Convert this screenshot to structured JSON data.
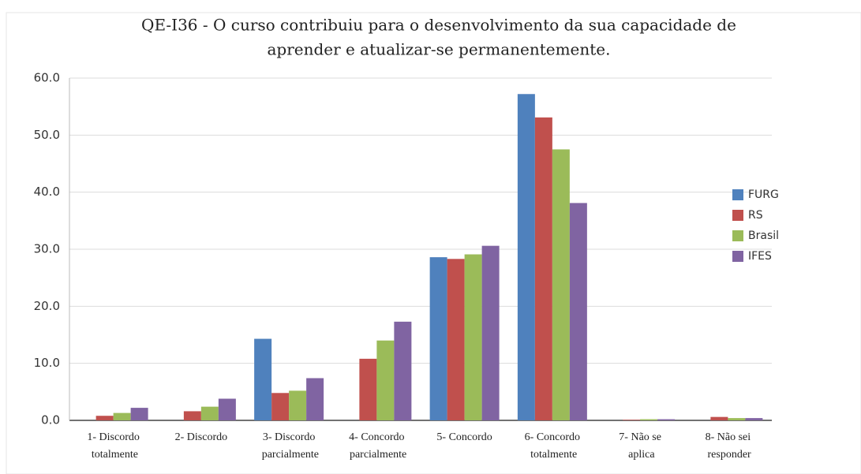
{
  "chart_data": {
    "type": "bar",
    "title": [
      "QE-I36 - O curso contribuiu para o desenvolvimento da sua capacidade de",
      "aprender e atualizar-se permanentemente."
    ],
    "categories": [
      "1- Discordo totalmente",
      "2- Discordo",
      "3- Discordo parcialmente",
      "4- Concordo parcialmente",
      "5- Concordo",
      "6- Concordo totalmente",
      "7- Não se aplica",
      "8- Não sei responder"
    ],
    "series": [
      {
        "name": "FURG",
        "color": "#4f81bd",
        "values": [
          0,
          0,
          14.3,
          0,
          28.6,
          57.2,
          0,
          0
        ]
      },
      {
        "name": "RS",
        "color": "#c0504d",
        "values": [
          0.8,
          1.6,
          4.8,
          10.8,
          28.3,
          53.1,
          0.1,
          0.6
        ]
      },
      {
        "name": "Brasil",
        "color": "#9bbb59",
        "values": [
          1.3,
          2.4,
          5.2,
          14.0,
          29.1,
          47.5,
          0.2,
          0.4
        ]
      },
      {
        "name": "IFES",
        "color": "#8064a2",
        "values": [
          2.2,
          3.8,
          7.4,
          17.3,
          30.6,
          38.1,
          0.2,
          0.4
        ]
      }
    ],
    "ylim": [
      0,
      60
    ],
    "yticks": [
      {
        "value": 0,
        "label": "0.0"
      },
      {
        "value": 10,
        "label": "10.0"
      },
      {
        "value": 20,
        "label": "20.0"
      },
      {
        "value": 30,
        "label": "30.0"
      },
      {
        "value": 40,
        "label": "40.0"
      },
      {
        "value": 50,
        "label": "50.0"
      },
      {
        "value": 60,
        "label": "60.0"
      }
    ],
    "grid": true,
    "legend": "right"
  }
}
